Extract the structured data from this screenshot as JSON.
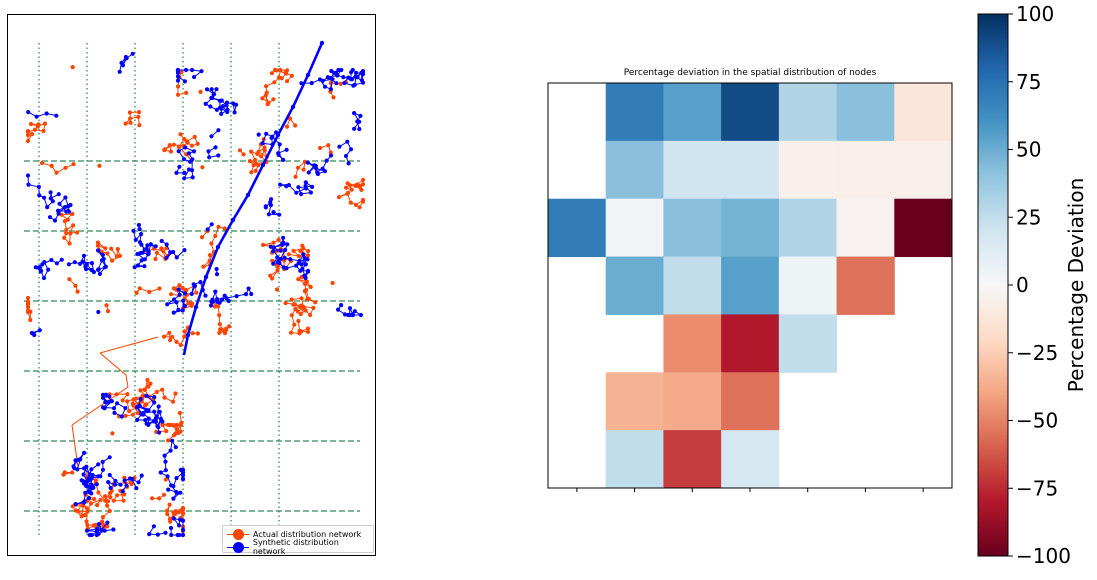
{
  "chart_data": [
    {
      "type": "network-map",
      "title": "",
      "series": [
        {
          "name": "Actual distribution network",
          "color": "#ff4500"
        },
        {
          "name": "Synthetic distribution network",
          "color": "#0000ff"
        }
      ],
      "grid": "on",
      "legend": "bottom-right"
    },
    {
      "type": "heatmap",
      "title": "Percentage deviation in the spatial distribution of nodes",
      "xlabel": "",
      "ylabel": "",
      "rows": 7,
      "cols": 7,
      "values": [
        [
          null,
          70,
          55,
          90,
          30,
          42,
          -12
        ],
        [
          null,
          42,
          20,
          20,
          -5,
          -6,
          -6
        ],
        [
          70,
          3,
          42,
          47,
          30,
          -3,
          -100
        ],
        [
          null,
          50,
          25,
          55,
          5,
          -55,
          null
        ],
        [
          null,
          null,
          -47,
          -80,
          25,
          null,
          null
        ],
        [
          null,
          -35,
          -38,
          -55,
          null,
          null,
          null
        ],
        [
          null,
          25,
          -70,
          18,
          null,
          null,
          null
        ]
      ],
      "colorscale": "RdBu",
      "clim": [
        -100,
        100
      ],
      "colorbar": {
        "label": "Percentage Deviation",
        "ticks": [
          "100",
          "75",
          "50",
          "25",
          "0",
          "−25",
          "−50",
          "−75",
          "−100"
        ]
      }
    }
  ]
}
